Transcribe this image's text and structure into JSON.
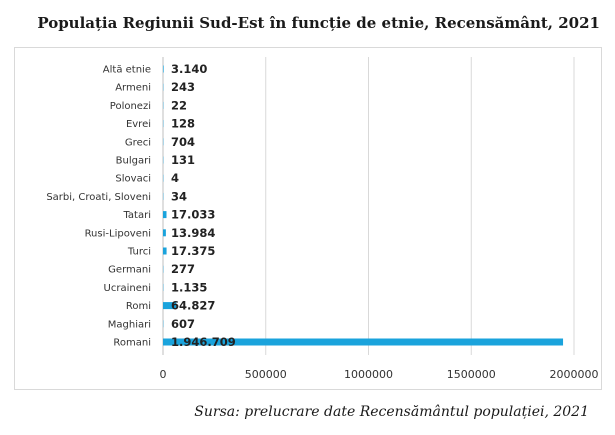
{
  "chart_data": {
    "type": "bar",
    "orientation": "horizontal",
    "title": "Populația Regiunii Sud-Est în funcție de etnie, Recensământ, 2021",
    "xlabel": "",
    "ylabel": "",
    "xlim": [
      0,
      2000000
    ],
    "x_ticks": [
      0,
      500000,
      1000000,
      1500000,
      2000000
    ],
    "x_tick_labels": [
      "0",
      "500000",
      "1000000",
      "1500000",
      "2000000"
    ],
    "grid": true,
    "bar_color": "#1aa3dc",
    "categories": [
      "Altă etnie",
      "Armeni",
      "Polonezi",
      "Evrei",
      "Greci",
      "Bulgari",
      "Slovaci",
      "Sarbi, Croati, Sloveni",
      "Tatari",
      "Rusi-Lipoveni",
      "Turci",
      "Germani",
      "Ucraineni",
      "Romi",
      "Maghiari",
      "Romani"
    ],
    "values": [
      3140,
      243,
      22,
      128,
      704,
      131,
      4,
      34,
      17033,
      13984,
      17375,
      277,
      1135,
      64827,
      607,
      1946709
    ],
    "value_labels": [
      "3.140",
      "243",
      "22",
      "128",
      "704",
      "131",
      "4",
      "34",
      "17.033",
      "13.984",
      "17.375",
      "277",
      "1.135",
      "64.827",
      "607",
      "1.946.709"
    ]
  },
  "source_note": "Sursa: prelucrare date Recensământul populației, 2021"
}
